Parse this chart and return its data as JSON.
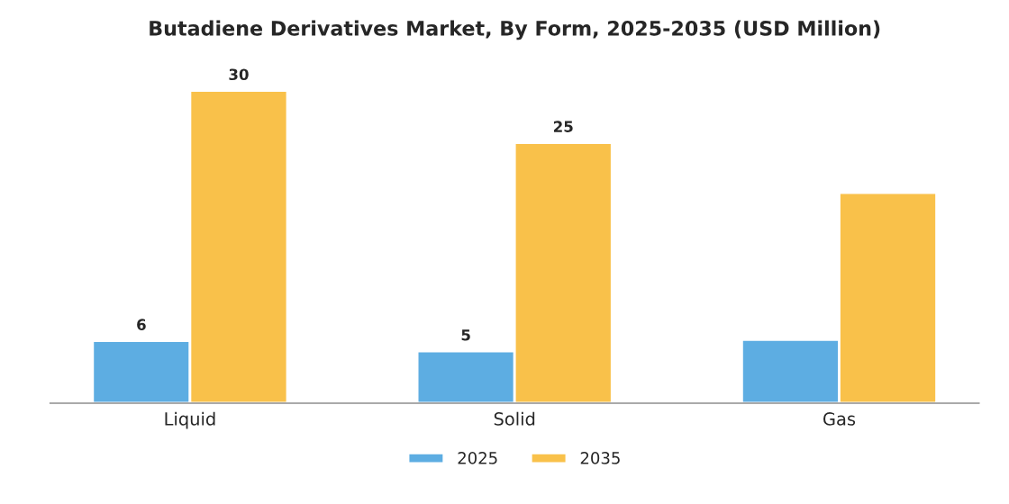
{
  "chart_data": {
    "type": "bar",
    "title": "Butadiene Derivatives Market, By Form, 2025-2035 (USD Million)",
    "categories": [
      "Liquid",
      "Solid",
      "Gas"
    ],
    "series": [
      {
        "name": "2025",
        "color": "#5dade2",
        "values": [
          6,
          5,
          6.1
        ],
        "value_labels": [
          "6",
          "5",
          null
        ]
      },
      {
        "name": "2035",
        "color": "#f9c14a",
        "values": [
          30,
          25,
          20.2
        ],
        "value_labels": [
          "30",
          "25",
          null
        ]
      }
    ],
    "legend": "bottom",
    "grid": false
  }
}
